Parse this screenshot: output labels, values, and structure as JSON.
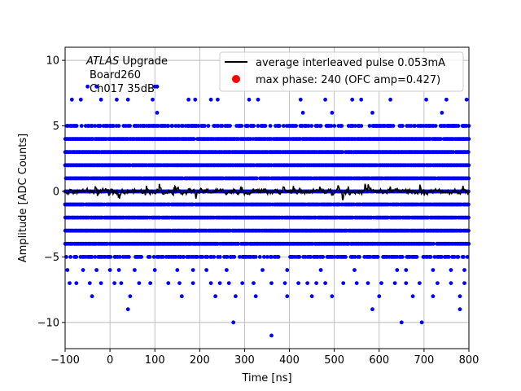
{
  "chart_data": {
    "type": "scatter",
    "xlabel": "Time [ns]",
    "ylabel": "Amplitude [ADC Counts]",
    "xlim": [
      -100,
      800
    ],
    "ylim": [
      -12,
      11
    ],
    "xticks": [
      "−100",
      "0",
      "100",
      "200",
      "300",
      "400",
      "500",
      "600",
      "700",
      "800"
    ],
    "xtick_values": [
      -100,
      0,
      100,
      200,
      300,
      400,
      500,
      600,
      700,
      800
    ],
    "yticks": [
      "−10",
      "−5",
      "0",
      "5",
      "10"
    ],
    "ytick_values": [
      -10,
      -5,
      0,
      5,
      10
    ],
    "grid": true,
    "legend_placement": "top-right",
    "annotation": {
      "italic": "ATLAS",
      "rest": " Upgrade",
      "line2": "Board260",
      "line3": "Ch017 35dB"
    },
    "series": [
      {
        "name": "average interleaved pulse 0.053mA",
        "kind": "line",
        "color": "#000000",
        "x_range": [
          -100,
          800
        ],
        "mean": 0.0,
        "noise_amplitude": 0.35
      },
      {
        "name": "max phase: 240 (OFC amp=0.427)",
        "kind": "scatter",
        "color": "#ff0000",
        "marker": "circle",
        "x": [],
        "y": []
      },
      {
        "kind": "scatter",
        "color": "#0000ff",
        "dense_levels": [
          -5,
          -4,
          -3,
          -2,
          -1,
          0,
          1,
          2,
          3,
          4,
          5
        ],
        "sparse_levels": [
          -6,
          6,
          7,
          -7
        ],
        "sparse_points": {
          "7": [
            -85,
            -65,
            -20,
            15,
            40,
            95,
            175,
            190,
            225,
            240,
            310,
            330,
            425,
            480,
            540,
            560,
            625,
            705,
            750,
            795
          ],
          "8": [
            -50,
            -30,
            100,
            105
          ],
          "6": [
            105,
            430,
            495,
            585,
            740
          ],
          "-6": [
            -95,
            -60,
            -30,
            0,
            20,
            55,
            100,
            150,
            185,
            215,
            260,
            340,
            395,
            470,
            545,
            640,
            660,
            720,
            760,
            790
          ],
          "-7": [
            -90,
            -75,
            -45,
            -20,
            10,
            25,
            65,
            90,
            130,
            155,
            185,
            225,
            245,
            265,
            295,
            320,
            360,
            390,
            420,
            440,
            460,
            480,
            520,
            550,
            575,
            605,
            635,
            660,
            690,
            730,
            760,
            790
          ],
          "-8": [
            -40,
            45,
            160,
            235,
            280,
            325,
            395,
            450,
            495,
            600,
            675,
            720,
            780
          ]
        },
        "outliers": [
          {
            "x": 40,
            "y": -9
          },
          {
            "x": 275,
            "y": -10
          },
          {
            "x": 360,
            "y": -11
          },
          {
            "x": 585,
            "y": -9
          },
          {
            "x": 650,
            "y": -10
          },
          {
            "x": 695,
            "y": -10
          },
          {
            "x": 780,
            "y": -9
          }
        ]
      }
    ]
  }
}
